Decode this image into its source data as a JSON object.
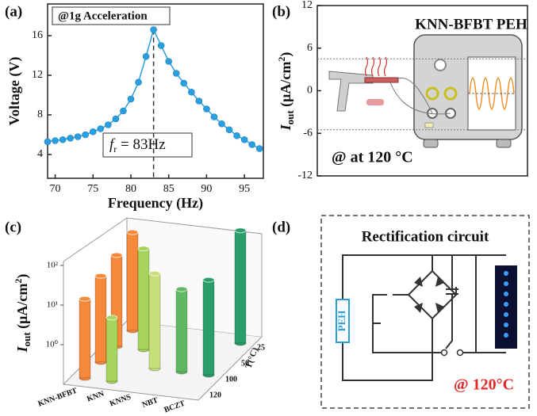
{
  "chart_data": [
    {
      "panel_label": "(a)",
      "type": "line",
      "x": [
        69,
        70,
        71,
        72,
        73,
        74,
        75,
        76,
        77,
        78,
        79,
        80,
        81,
        82,
        83,
        84,
        85,
        86,
        87,
        88,
        89,
        90,
        91,
        92,
        93,
        94,
        95,
        96,
        97
      ],
      "series": [
        {
          "color": "#2a9fe0",
          "values": [
            5.3,
            5.4,
            5.5,
            5.65,
            5.8,
            6.0,
            6.3,
            6.6,
            7.0,
            7.6,
            8.4,
            9.6,
            11.3,
            13.9,
            16.6,
            15.0,
            13.4,
            12.2,
            11.2,
            10.3,
            9.4,
            8.6,
            7.8,
            7.1,
            6.5,
            5.9,
            5.5,
            5.0,
            4.6
          ]
        }
      ],
      "xlabel": "Frequency (Hz)",
      "ylabel": "Voltage (V)",
      "xlim": [
        69,
        97.5
      ],
      "ylim": [
        1.6,
        19.2
      ],
      "xticks": [
        70,
        75,
        80,
        85,
        90,
        95
      ],
      "yticks": [
        4,
        8,
        12,
        16
      ],
      "annotation": "@1g Acceleration",
      "resonance": {
        "symbol": "f",
        "subscript": "r",
        "text": " = 83Hz"
      }
    },
    {
      "panel_label": "(b)",
      "type": "axes",
      "title": "KNN-BFBT PEH",
      "annotation": "@ at 120 °C",
      "ylabel": {
        "symbol": "I",
        "subscript": "out",
        "unit": " (μA/cm",
        "superscript": "2",
        "close": ")"
      },
      "ylim": [
        -12,
        12
      ],
      "yticks": [
        -12,
        -6,
        0,
        6,
        12
      ],
      "reference_levels": [
        4.5,
        -5.5
      ]
    },
    {
      "panel_label": "(c)",
      "type": "bar3d",
      "yscale": "log",
      "categories": [
        "KNN-BFBT",
        "KNN",
        "KNNS",
        "NBT",
        "BCZT"
      ],
      "depth_categories": [
        25,
        50,
        100,
        120
      ],
      "depth_label": "T(°C)",
      "ylabel": {
        "symbol": "I",
        "subscript": "out",
        "unit": " (μA/cm",
        "superscript": "2",
        "close": ")"
      },
      "colors": [
        "#f5883a",
        "#a6d45a",
        "#c8e07a",
        "#5fb862",
        "#2a9d6a"
      ],
      "values": [
        [
          30,
          20,
          15,
          10
        ],
        [
          null,
          35,
          null,
          4
        ],
        [
          null,
          null,
          25,
          null
        ],
        [
          null,
          null,
          12,
          null
        ],
        [
          70,
          null,
          25,
          null
        ]
      ],
      "ylim": [
        0.1,
        100
      ],
      "yticks": [
        {
          "value": 1,
          "label": "10⁰"
        },
        {
          "value": 10,
          "label": "10¹"
        },
        {
          "value": 100,
          "label": "10²"
        }
      ]
    }
  ],
  "diagram": {
    "panel_label": "(d)",
    "title": "Rectification circuit",
    "source_label": "PEH",
    "annotation": "@ 120°C"
  }
}
